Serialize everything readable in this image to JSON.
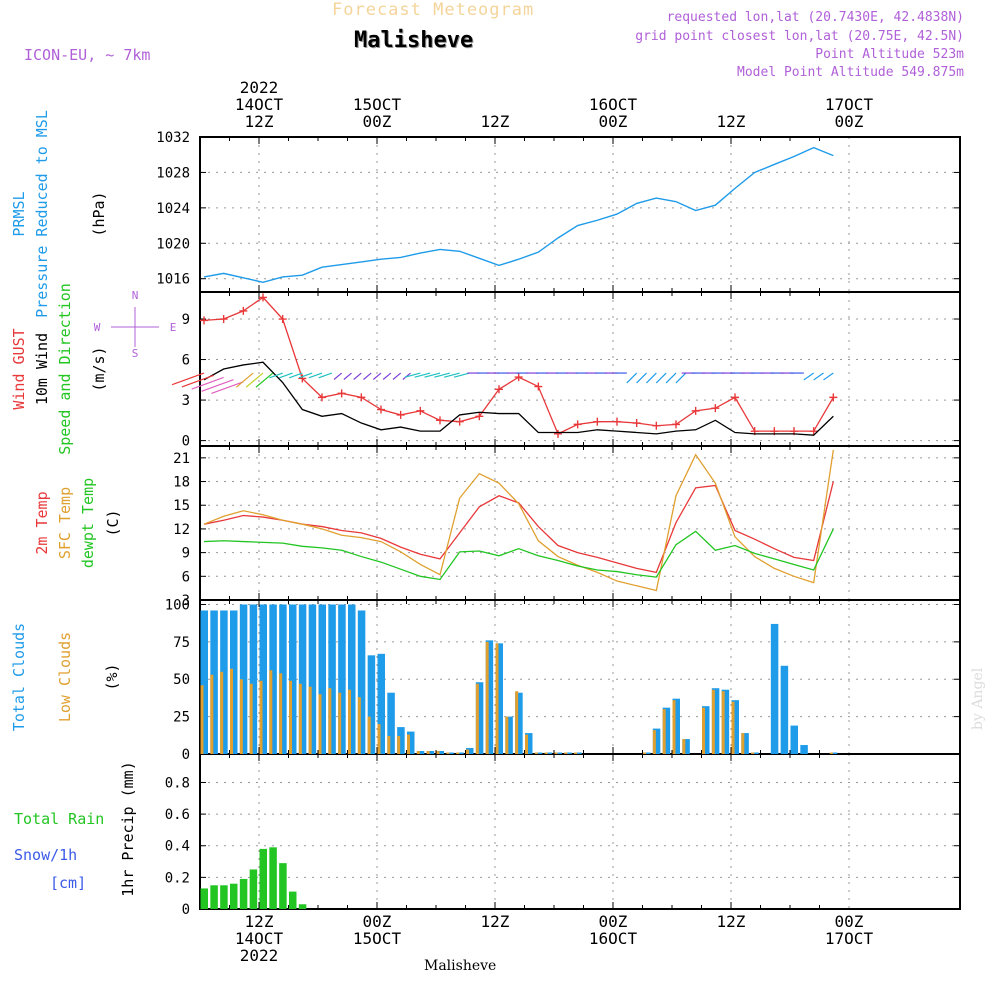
{
  "header": {
    "supertitle": "Forecast Meteogram",
    "title": "Malisheve",
    "model": "ICON-EU, ~ 7km",
    "requested": "requested lon,lat (20.7430E, 42.4838N)",
    "gridpoint": "grid point closest lon,lat (20.75E, 42.5N)",
    "point_altitude": "Point Altitude 523m",
    "model_altitude": "Model Point Altitude 549.875m"
  },
  "footer": {
    "location": "Malisheve",
    "watermark": "by Angel"
  },
  "time_axis": {
    "start_hour": 6,
    "end_hour": 70,
    "top_labels": [
      {
        "h": 12,
        "lines": [
          "2022",
          "14OCT",
          "12Z"
        ]
      },
      {
        "h": 24,
        "lines": [
          "15OCT",
          "00Z"
        ]
      },
      {
        "h": 36,
        "lines": [
          "12Z"
        ]
      },
      {
        "h": 48,
        "lines": [
          "16OCT",
          "00Z"
        ]
      },
      {
        "h": 60,
        "lines": [
          "12Z"
        ]
      },
      {
        "h": 72,
        "lines": [
          "17OCT",
          "00Z"
        ]
      }
    ],
    "bottom_labels": [
      {
        "h": 12,
        "lines": [
          "12Z",
          "14OCT",
          "2022"
        ]
      },
      {
        "h": 24,
        "lines": [
          "00Z",
          "15OCT"
        ]
      },
      {
        "h": 36,
        "lines": [
          "12Z"
        ]
      },
      {
        "h": 48,
        "lines": [
          "00Z",
          "16OCT"
        ]
      },
      {
        "h": 60,
        "lines": [
          "12Z"
        ]
      },
      {
        "h": 72,
        "lines": [
          "00Z",
          "17OCT"
        ]
      }
    ],
    "top_label_positions_note": "",
    "gridline_hours": [
      12,
      24,
      36,
      48,
      60,
      72
    ]
  },
  "panel_labels": {
    "pressure": [
      {
        "text": "PRMSL",
        "color": "#1e9be9"
      },
      {
        "text": "Pressure Reduced to MSL",
        "color": "#1e9be9"
      },
      {
        "text": "(hPa)",
        "color": "#000000"
      }
    ],
    "wind": [
      {
        "text": "Wind GUST",
        "color": "#e8383a"
      },
      {
        "text": "10m Wind",
        "color": "#000000"
      },
      {
        "text": "Speed and Direction",
        "color": "#22c522"
      },
      {
        "text": "(m/s)",
        "color": "#000000"
      }
    ],
    "compass": {
      "n": "N",
      "s": "S",
      "w": "W",
      "e": "E"
    },
    "temp": [
      {
        "text": "2m Temp",
        "color": "#e8383a"
      },
      {
        "text": "SFC Temp",
        "color": "#e0a030"
      },
      {
        "text": "dewpt Temp",
        "color": "#22c522"
      },
      {
        "text": "(C)",
        "color": "#000000"
      }
    ],
    "clouds": [
      {
        "text": "Total Clouds",
        "color": "#1e9be9"
      },
      {
        "text": "Low Clouds",
        "color": "#e0a030"
      },
      {
        "text": "(%)",
        "color": "#000000"
      }
    ],
    "precip_rot": "1hr Precip (mm)",
    "precip_side": [
      {
        "text": "Total  Rain",
        "color": "#22c522"
      },
      {
        "text": "Snow/1h",
        "color": "#3a5ae8"
      },
      {
        "text": "[cm]",
        "color": "#3a5ae8"
      }
    ]
  },
  "colors": {
    "pressure": "#1e9be9",
    "gust": "#e8383a",
    "wind": "#000000",
    "t2m": "#e8383a",
    "sfc": "#e0a030",
    "dew": "#22c522",
    "total_cloud": "#1e9be9",
    "low_cloud": "#e0a030",
    "rain": "#22c522",
    "header_orange": "#f5d49a",
    "header_purple": "#b060d8"
  },
  "chart_data": [
    {
      "type": "line",
      "name": "pressure",
      "ylabel": "(hPa)",
      "ylim": [
        1014.5,
        1032
      ],
      "yticks": [
        1016,
        1020,
        1024,
        1028,
        1032
      ],
      "x": [
        6,
        8,
        10,
        12,
        14,
        16,
        18,
        20,
        22,
        24,
        26,
        28,
        30,
        32,
        34,
        36,
        38,
        40,
        42,
        44,
        46,
        48,
        50,
        52,
        54,
        56,
        58,
        60,
        62,
        64,
        66,
        68,
        70
      ],
      "series": [
        {
          "values": [
            1016.2,
            1016.6,
            1016.1,
            1015.6,
            1016.2,
            1016.4,
            1017.3,
            1017.6,
            1017.9,
            1018.2,
            1018.4,
            1018.9,
            1019.3,
            1019.1,
            1018.3,
            1017.5,
            1018.2,
            1019.0,
            1020.6,
            1022.0,
            1022.6,
            1023.3,
            1024.5,
            1025.1,
            1024.7,
            1023.7,
            1024.3,
            1026.2,
            1028.0,
            1028.9,
            1029.8,
            1030.8,
            1029.9
          ]
        }
      ]
    },
    {
      "type": "line",
      "name": "wind",
      "ylabel": "(m/s)",
      "ylim": [
        -0.4,
        11
      ],
      "yticks": [
        0,
        3,
        6,
        9
      ],
      "x": [
        6,
        8,
        10,
        12,
        14,
        16,
        18,
        20,
        22,
        24,
        26,
        28,
        30,
        32,
        34,
        36,
        38,
        40,
        42,
        44,
        46,
        48,
        50,
        52,
        54,
        56,
        58,
        60,
        62,
        64,
        66,
        68,
        70
      ],
      "series": [
        {
          "values": [
            8.9,
            9.0,
            9.6,
            10.6,
            9.0,
            4.6,
            3.2,
            3.5,
            3.2,
            2.3,
            1.9,
            2.2,
            1.5,
            1.4,
            1.8,
            3.8,
            4.7,
            4.0,
            0.5,
            1.2,
            1.4,
            1.4,
            1.3,
            1.1,
            1.2,
            2.2,
            2.4,
            3.2,
            0.7,
            0.7,
            0.7,
            0.7,
            3.2
          ]
        },
        {
          "values": [
            4.5,
            5.3,
            5.6,
            5.8,
            4.3,
            2.3,
            1.8,
            2.0,
            1.3,
            0.8,
            1.0,
            0.7,
            0.7,
            1.9,
            2.1,
            2.0,
            2.0,
            0.6,
            0.6,
            0.6,
            0.8,
            0.7,
            0.6,
            0.5,
            0.7,
            0.8,
            1.5,
            0.6,
            0.5,
            0.5,
            0.5,
            0.4,
            1.8
          ]
        }
      ]
    },
    {
      "type": "line",
      "name": "temperature",
      "ylabel": "(C)",
      "ylim": [
        3,
        22.5
      ],
      "yticks": [
        3,
        6,
        9,
        12,
        15,
        18,
        21
      ],
      "x": [
        6,
        8,
        10,
        12,
        14,
        16,
        18,
        20,
        22,
        24,
        26,
        28,
        30,
        32,
        34,
        36,
        38,
        40,
        42,
        44,
        46,
        48,
        50,
        52,
        54,
        56,
        58,
        60,
        62,
        64,
        66,
        68,
        70
      ],
      "series": [
        {
          "values": [
            12.6,
            13.1,
            13.7,
            13.5,
            13.1,
            12.6,
            12.3,
            11.8,
            11.5,
            10.8,
            9.7,
            8.8,
            8.2,
            11.5,
            14.8,
            16.2,
            15.3,
            12.3,
            9.9,
            9.0,
            8.4,
            7.7,
            7.0,
            6.5,
            12.8,
            17.2,
            17.5,
            11.8,
            10.7,
            9.5,
            8.4,
            8.0,
            18.0
          ]
        },
        {
          "values": [
            12.6,
            13.6,
            14.3,
            13.8,
            13.1,
            12.6,
            12.0,
            11.2,
            10.9,
            10.4,
            9.1,
            7.5,
            6.2,
            15.9,
            19.0,
            17.8,
            15.2,
            10.5,
            8.5,
            7.4,
            6.5,
            5.4,
            4.8,
            4.2,
            16.2,
            21.4,
            17.8,
            11.0,
            8.5,
            7.0,
            6.0,
            5.2,
            22.0
          ]
        },
        {
          "values": [
            10.4,
            10.5,
            10.4,
            10.3,
            10.2,
            9.8,
            9.6,
            9.3,
            8.5,
            7.8,
            6.9,
            6.0,
            5.6,
            9.1,
            9.2,
            8.6,
            9.5,
            8.6,
            8.0,
            7.3,
            6.8,
            6.6,
            6.2,
            5.9,
            10.0,
            11.7,
            9.3,
            9.9,
            8.9,
            8.2,
            7.5,
            6.8,
            12.0
          ]
        }
      ]
    },
    {
      "type": "bar",
      "name": "clouds",
      "ylabel": "(%)",
      "ylim": [
        0,
        103
      ],
      "yticks": [
        0,
        25,
        50,
        75,
        100
      ],
      "x": [
        6,
        7,
        8,
        9,
        10,
        11,
        12,
        13,
        14,
        15,
        16,
        17,
        18,
        19,
        20,
        21,
        22,
        23,
        24,
        25,
        26,
        27,
        28,
        29,
        30,
        31,
        32,
        33,
        34,
        35,
        36,
        37,
        38,
        39,
        40,
        41,
        42,
        43,
        44,
        45,
        46,
        47,
        48,
        49,
        50,
        51,
        52,
        53,
        54,
        55,
        56,
        57,
        58,
        59,
        60,
        61,
        62,
        63,
        64,
        65,
        66,
        67,
        68,
        69,
        70
      ],
      "series": [
        {
          "name": "Total Clouds",
          "values": [
            96,
            96,
            96,
            96,
            100,
            100,
            100,
            100,
            100,
            100,
            100,
            100,
            100,
            100,
            100,
            100,
            96,
            66,
            67,
            41,
            18,
            15,
            2,
            2,
            2,
            1,
            1,
            4,
            48,
            76,
            74,
            25,
            41,
            14,
            1,
            1,
            1,
            1,
            1,
            0,
            0,
            0,
            0,
            0,
            0,
            1,
            17,
            31,
            37,
            10,
            0,
            32,
            44,
            43,
            36,
            14,
            1,
            0,
            87,
            59,
            19,
            6,
            0,
            0,
            1
          ]
        },
        {
          "name": "Low Clouds",
          "values": [
            46,
            53,
            55,
            57,
            50,
            47,
            49,
            56,
            54,
            49,
            47,
            45,
            40,
            44,
            41,
            43,
            38,
            25,
            20,
            12,
            12,
            13,
            2,
            2,
            2,
            1,
            1,
            3,
            47,
            75,
            74,
            25,
            42,
            13,
            1,
            1,
            1,
            1,
            1,
            0,
            0,
            0,
            0,
            0,
            0,
            1,
            16,
            30,
            36,
            10,
            0,
            31,
            43,
            42,
            35,
            14,
            1,
            0,
            0,
            0,
            0,
            0,
            0,
            0,
            1
          ]
        }
      ]
    },
    {
      "type": "bar",
      "name": "precipitation",
      "ylabel": "1hr Precip (mm)",
      "ylim": [
        0,
        0.98
      ],
      "yticks": [
        0,
        0.2,
        0.4,
        0.6,
        0.8
      ],
      "x": [
        6,
        7,
        8,
        9,
        10,
        11,
        12,
        13,
        14,
        15,
        16,
        17,
        18,
        19,
        20,
        21,
        22,
        23,
        24,
        25,
        26,
        27,
        28,
        29,
        30,
        31,
        32,
        33,
        34,
        35,
        36,
        37,
        38,
        39,
        40,
        41,
        42,
        43,
        44,
        45,
        46,
        47,
        48,
        49,
        50,
        51,
        52,
        53,
        54,
        55,
        56,
        57,
        58,
        59,
        60,
        61,
        62,
        63,
        64,
        65,
        66,
        67,
        68,
        69,
        70
      ],
      "series": [
        {
          "name": "Total Rain",
          "values": [
            0.13,
            0.15,
            0.15,
            0.16,
            0.19,
            0.25,
            0.38,
            0.39,
            0.29,
            0.11,
            0.03,
            0,
            0,
            0,
            0,
            0,
            0,
            0,
            0,
            0,
            0,
            0,
            0,
            0,
            0,
            0,
            0,
            0,
            0,
            0,
            0,
            0,
            0,
            0,
            0,
            0,
            0,
            0,
            0,
            0,
            0,
            0,
            0,
            0,
            0,
            0,
            0,
            0,
            0,
            0,
            0,
            0,
            0,
            0,
            0,
            0,
            0,
            0,
            0,
            0,
            0,
            0,
            0,
            0,
            0
          ]
        }
      ]
    }
  ]
}
